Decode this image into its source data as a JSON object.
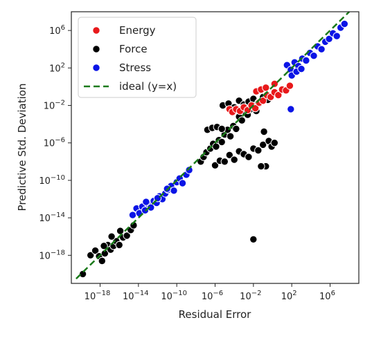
{
  "chart_data": {
    "type": "scatter",
    "title": "",
    "xlabel": "Residual  Error",
    "ylabel": "Predictive  Std. Deviation",
    "xscale": "log",
    "yscale": "log",
    "xlim_exp": [
      -21,
      9
    ],
    "ylim_exp": [
      -21,
      8
    ],
    "xticks": [
      {
        "exp": -18,
        "base": "10",
        "sup": "−18"
      },
      {
        "exp": -14,
        "base": "10",
        "sup": "−14"
      },
      {
        "exp": -10,
        "base": "10",
        "sup": "−10"
      },
      {
        "exp": -6,
        "base": "10",
        "sup": "−6"
      },
      {
        "exp": -2,
        "base": "10",
        "sup": "−2"
      },
      {
        "exp": 2,
        "base": "10",
        "sup": "2"
      },
      {
        "exp": 6,
        "base": "10",
        "sup": "6"
      }
    ],
    "yticks": [
      {
        "exp": 6,
        "base": "10",
        "sup": "6"
      },
      {
        "exp": 2,
        "base": "10",
        "sup": "2"
      },
      {
        "exp": -2,
        "base": "10",
        "sup": "−2"
      },
      {
        "exp": -6,
        "base": "10",
        "sup": "−6"
      },
      {
        "exp": -10,
        "base": "10",
        "sup": "−10"
      },
      {
        "exp": -14,
        "base": "10",
        "sup": "−14"
      },
      {
        "exp": -18,
        "base": "10",
        "sup": "−18"
      }
    ],
    "grid": false,
    "legend_position": "top-left",
    "legend": [
      {
        "label": "Energy",
        "kind": "marker",
        "color": "#e8191b"
      },
      {
        "label": "Force",
        "kind": "marker",
        "color": "#000000"
      },
      {
        "label": "Stress",
        "kind": "marker",
        "color": "#0a14e6"
      },
      {
        "label": "ideal (y=x)",
        "kind": "line",
        "color": "#1a7a1a"
      }
    ],
    "ideal_line": {
      "x_exp": [
        -20.5,
        8
      ],
      "y_exp": [
        -20.5,
        8
      ]
    },
    "series": [
      {
        "name": "Force",
        "color": "#000000",
        "points_log10": [
          [
            -19.8,
            -20.0
          ],
          [
            -19.0,
            -18.0
          ],
          [
            -18.5,
            -17.5
          ],
          [
            -18.1,
            -18.1
          ],
          [
            -17.8,
            -18.6
          ],
          [
            -17.5,
            -17.8
          ],
          [
            -17.2,
            -16.9
          ],
          [
            -16.9,
            -17.4
          ],
          [
            -16.6,
            -17.0
          ],
          [
            -16.3,
            -16.5
          ],
          [
            -16.0,
            -16.9
          ],
          [
            -15.6,
            -16.1
          ],
          [
            -15.2,
            -15.9
          ],
          [
            -14.8,
            -15.3
          ],
          [
            -14.5,
            -14.8
          ],
          [
            -17.6,
            -17.0
          ],
          [
            -16.8,
            -16.0
          ],
          [
            -15.9,
            -15.4
          ],
          [
            -7.5,
            -8.0
          ],
          [
            -7.2,
            -7.5
          ],
          [
            -6.9,
            -7.0
          ],
          [
            -6.5,
            -6.6
          ],
          [
            -6.2,
            -6.1
          ],
          [
            -5.9,
            -6.4
          ],
          [
            -5.6,
            -5.7
          ],
          [
            -5.3,
            -5.9
          ],
          [
            -5.0,
            -5.1
          ],
          [
            -4.7,
            -4.6
          ],
          [
            -4.4,
            -5.3
          ],
          [
            -4.1,
            -4.2
          ],
          [
            -3.8,
            -4.5
          ],
          [
            -3.5,
            -3.2
          ],
          [
            -3.2,
            -3.6
          ],
          [
            -2.9,
            -2.7
          ],
          [
            -2.6,
            -3.0
          ],
          [
            -2.3,
            -2.4
          ],
          [
            -2.0,
            -2.1
          ],
          [
            -1.7,
            -2.6
          ],
          [
            -1.4,
            -1.8
          ],
          [
            -6.0,
            -8.4
          ],
          [
            -5.5,
            -7.9
          ],
          [
            -5.0,
            -8.0
          ],
          [
            -4.5,
            -7.3
          ],
          [
            -4.0,
            -7.8
          ],
          [
            -3.5,
            -6.9
          ],
          [
            -3.0,
            -7.2
          ],
          [
            -2.5,
            -7.5
          ],
          [
            -2.0,
            -6.6
          ],
          [
            -1.5,
            -6.8
          ],
          [
            -1.0,
            -6.2
          ],
          [
            -0.7,
            -8.5
          ],
          [
            -1.2,
            -8.5
          ],
          [
            -5.2,
            -2.0
          ],
          [
            -4.6,
            -1.8
          ],
          [
            -4.0,
            -2.2
          ],
          [
            -3.5,
            -1.5
          ],
          [
            -3.0,
            -1.9
          ],
          [
            -2.5,
            -1.6
          ],
          [
            -2.0,
            -1.3
          ],
          [
            -1.5,
            -1.7
          ],
          [
            -1.0,
            -1.1
          ],
          [
            -0.5,
            -1.4
          ],
          [
            -0.9,
            -4.8
          ],
          [
            -0.4,
            -5.8
          ],
          [
            -0.1,
            -6.4
          ],
          [
            0.2,
            -6.0
          ],
          [
            -6.8,
            -4.6
          ],
          [
            -6.3,
            -4.4
          ],
          [
            -5.8,
            -4.3
          ],
          [
            -5.3,
            -4.5
          ],
          [
            -2.0,
            -16.3
          ]
        ]
      },
      {
        "name": "Energy",
        "color": "#e8191b",
        "points_log10": [
          [
            -4.5,
            -2.4
          ],
          [
            -4.2,
            -2.7
          ],
          [
            -3.8,
            -2.4
          ],
          [
            -3.4,
            -2.6
          ],
          [
            -3.0,
            -2.2
          ],
          [
            -2.6,
            -2.5
          ],
          [
            -2.2,
            -2.0
          ],
          [
            -1.8,
            -2.3
          ],
          [
            -1.4,
            -1.7
          ],
          [
            -1.0,
            -1.5
          ],
          [
            -0.6,
            -0.9
          ],
          [
            -0.2,
            -1.1
          ],
          [
            0.2,
            -0.6
          ],
          [
            0.6,
            -0.9
          ],
          [
            1.0,
            -0.3
          ],
          [
            1.4,
            -0.4
          ],
          [
            1.8,
            0.1
          ],
          [
            -1.7,
            -0.5
          ],
          [
            -1.2,
            -0.3
          ],
          [
            -0.7,
            -0.1
          ],
          [
            0.2,
            0.3
          ]
        ]
      },
      {
        "name": "Stress",
        "color": "#0a14e6",
        "points_log10": [
          [
            -14.6,
            -13.7
          ],
          [
            -14.2,
            -13.0
          ],
          [
            -13.9,
            -13.5
          ],
          [
            -13.6,
            -12.8
          ],
          [
            -13.3,
            -13.2
          ],
          [
            -13.0,
            -12.5
          ],
          [
            -12.7,
            -12.9
          ],
          [
            -12.4,
            -12.2
          ],
          [
            -12.1,
            -12.4
          ],
          [
            -11.8,
            -11.7
          ],
          [
            -11.5,
            -12.0
          ],
          [
            -11.2,
            -11.4
          ],
          [
            -10.9,
            -11.0
          ],
          [
            -10.6,
            -10.6
          ],
          [
            -10.3,
            -11.1
          ],
          [
            -10.0,
            -10.2
          ],
          [
            -9.7,
            -9.8
          ],
          [
            -9.4,
            -10.3
          ],
          [
            -9.0,
            -9.4
          ],
          [
            -8.7,
            -8.9
          ],
          [
            -13.2,
            -12.3
          ],
          [
            -12.0,
            -11.9
          ],
          [
            -11.0,
            -10.9
          ],
          [
            1.5,
            2.3
          ],
          [
            1.9,
            1.8
          ],
          [
            2.3,
            2.6
          ],
          [
            2.7,
            2.2
          ],
          [
            3.1,
            3.0
          ],
          [
            3.5,
            2.8
          ],
          [
            3.9,
            3.6
          ],
          [
            4.3,
            3.3
          ],
          [
            4.7,
            4.3
          ],
          [
            5.1,
            4.0
          ],
          [
            5.5,
            4.8
          ],
          [
            5.9,
            5.1
          ],
          [
            6.3,
            5.7
          ],
          [
            6.7,
            5.4
          ],
          [
            7.1,
            6.3
          ],
          [
            7.5,
            6.7
          ],
          [
            2.0,
            1.2
          ],
          [
            2.5,
            1.6
          ],
          [
            3.0,
            1.9
          ],
          [
            1.9,
            -2.4
          ]
        ]
      }
    ]
  }
}
